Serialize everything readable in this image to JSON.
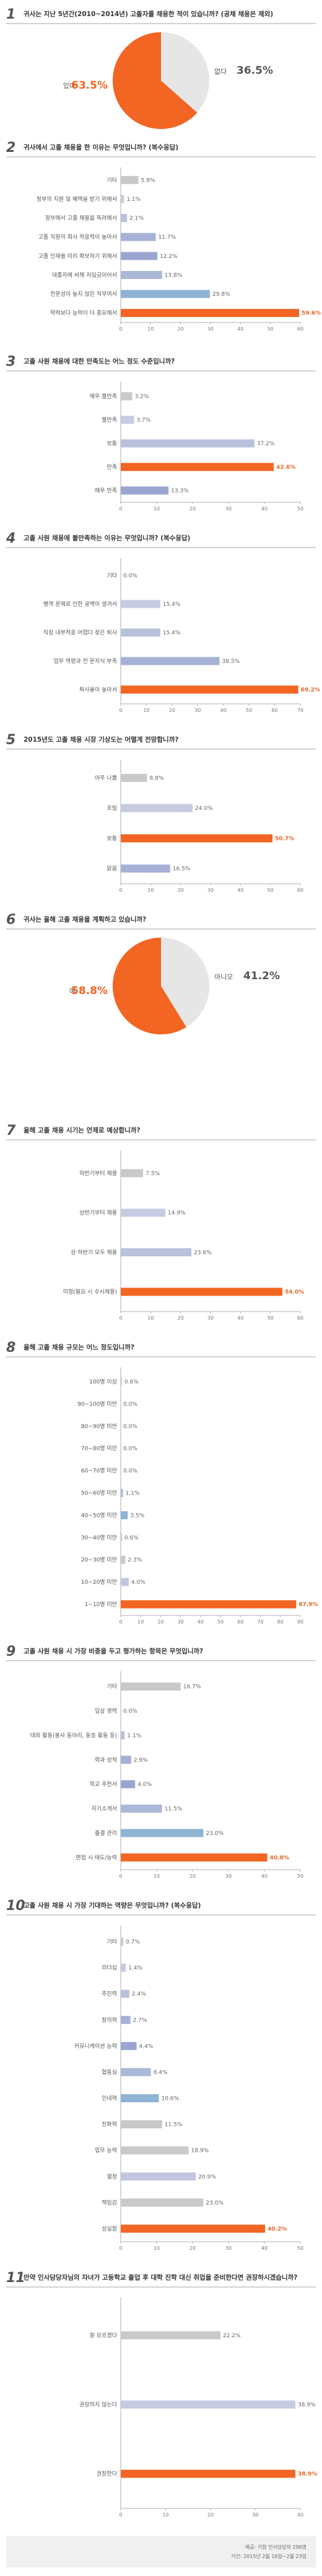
{
  "colors": {
    "orange": "#f26522",
    "bar_fills": [
      "#c9c9c9",
      "#c5cbe0",
      "#b9c2dc",
      "#a7b1d6",
      "#9aa6d0",
      "#aab9d8",
      "#8fb3d4",
      "#c7c7c7",
      "#cacaca",
      "#bfc6dd"
    ],
    "pie_gray": "#e6e6e6",
    "rule": "#888888"
  },
  "chart_data": [
    {
      "type": "pie",
      "qnum": "1",
      "title": "귀사는 지난 5년간(2010~2014년) 고졸자를 채용한 적이 있습니까? (공채 채용은 제외)",
      "slices": [
        {
          "label": "있다",
          "value": 63.5,
          "pct_text": "63.5%",
          "highlight": true
        },
        {
          "label": "없다",
          "value": 36.5,
          "pct_text": "36.5%",
          "highlight": false
        }
      ]
    },
    {
      "type": "bar",
      "qnum": "2",
      "title": "귀사에서 고졸 채용을 한 이유는 무엇입니까? (복수응답)",
      "categories": [
        "기타",
        "정부의 지원 및 혜택을 받기 위해서",
        "정부에서 고졸 채용을 독려해서",
        "고졸 직원의 회사 적응력이 높아서",
        "고졸 인재를 미리 확보하기 위해서",
        "대졸자에 비해 저임금이어서",
        "전문성이 높지 않은 직무여서",
        "학력보다 능력이 더 중요해서"
      ],
      "values": [
        5.9,
        1.1,
        2.1,
        11.7,
        12.2,
        13.8,
        29.8,
        59.6
      ],
      "value_labels": [
        "5.9%",
        "1.1%",
        "2.1%",
        "11.7%",
        "12.2%",
        "13.8%",
        "29.8%",
        "59.6%"
      ],
      "xlim": [
        0,
        60
      ],
      "ticks": [
        "0",
        "10",
        "20",
        "30",
        "40",
        "50",
        "60"
      ]
    },
    {
      "type": "bar",
      "qnum": "3",
      "title": "고졸 사원 채용에 대한 만족도는 어느 정도 수준입니까?",
      "categories": [
        "매우 불만족",
        "불만족",
        "보통",
        "만족",
        "매우 만족"
      ],
      "values": [
        3.2,
        3.7,
        37.2,
        42.6,
        13.3
      ],
      "value_labels": [
        "3.2%",
        "3.7%",
        "37.2%",
        "42.6%",
        "13.3%"
      ],
      "xlim": [
        0,
        50
      ],
      "ticks": [
        "0",
        "10",
        "20",
        "30",
        "40",
        "50"
      ]
    },
    {
      "type": "bar",
      "qnum": "4",
      "title": "고졸 사원 채용에 불만족하는 이유는 무엇입니까? (복수응답)",
      "categories": [
        "기타",
        "병역 문제로 인한 공백이 생겨서",
        "직장 내부적응 어렵다 잦은 퇴사",
        "업무 역량과 전 문지식 부족",
        "퇴사율이 높아서"
      ],
      "values": [
        0.0,
        15.4,
        15.4,
        38.5,
        69.2
      ],
      "value_labels": [
        "0.0%",
        "15.4%",
        "15.4%",
        "38.5%",
        "69.2%"
      ],
      "xlim": [
        0,
        70
      ],
      "ticks": [
        "0",
        "10",
        "20",
        "30",
        "40",
        "50",
        "60",
        "70"
      ]
    },
    {
      "type": "bar",
      "qnum": "5",
      "title": "2015년도 고졸 채용 시장 기상도는 어떨게 전망합니까?",
      "categories": [
        "아주 나쁨",
        "흐림",
        "보통",
        "맑음"
      ],
      "values": [
        8.8,
        24.0,
        50.7,
        16.5
      ],
      "value_labels": [
        "8.8%",
        "24.0%",
        "50.7%",
        "16.5%"
      ],
      "xlim": [
        0,
        60
      ],
      "ticks": [
        "0",
        "10",
        "20",
        "30",
        "40",
        "50",
        "60"
      ]
    },
    {
      "type": "pie",
      "qnum": "6",
      "title": "귀사는 올해 고졸 채용을 계획하고 있습니까?",
      "slices": [
        {
          "label": "예",
          "value": 58.8,
          "pct_text": "58.8%",
          "highlight": true
        },
        {
          "label": "아니오",
          "value": 41.2,
          "pct_text": "41.2%",
          "highlight": false
        }
      ]
    },
    {
      "type": "bar",
      "qnum": "7",
      "title": "올해 고졸 채용 시기는 언제로 예상합니까?",
      "categories": [
        "하반기부터 채용",
        "상반기부터 채용",
        "상·하반기 모두 채용",
        "미정(필요 시 수시채용)"
      ],
      "values": [
        7.5,
        14.9,
        23.6,
        54.0
      ],
      "value_labels": [
        "7.5%",
        "14.9%",
        "23.6%",
        "54.0%"
      ],
      "xlim": [
        0,
        60
      ],
      "ticks": [
        "0",
        "10",
        "20",
        "30",
        "40",
        "50",
        "60"
      ]
    },
    {
      "type": "bar",
      "qnum": "8",
      "title": "올해 고졸 채용 규모는 어느 정도입니까?",
      "categories": [
        "100명 이상",
        "90~100명 미만",
        "80~90명 미만",
        "70~80명 미만",
        "60~70명 미만",
        "50~60명 미만",
        "40~50명 미만",
        "30~40명 미만",
        "20~30명 미만",
        "10~20명 미만",
        "1~10명 미만"
      ],
      "values": [
        0.6,
        0.0,
        0.0,
        0.0,
        0.0,
        1.1,
        3.5,
        0.6,
        2.3,
        4.0,
        87.9
      ],
      "value_labels": [
        "0.6%",
        "0.0%",
        "0.0%",
        "0.0%",
        "0.0%",
        "1.1%",
        "3.5%",
        "0.6%",
        "2.3%",
        "4.0%",
        "87.9%"
      ],
      "xlim": [
        0,
        90
      ],
      "ticks": [
        "0",
        "10",
        "20",
        "30",
        "40",
        "50",
        "60",
        "70",
        "80",
        "90"
      ]
    },
    {
      "type": "bar",
      "qnum": "9",
      "title": "고졸 사원 채용 시 가장 비중을 두고 평가하는 항목은 무엇입니까?",
      "categories": [
        "기타",
        "입상 경력",
        "대외 활동(봉사 동아리, 동호 활동 등)",
        "학과 성적",
        "학교 추천서",
        "자기소개서",
        "출결 관리",
        "면접 시 태도/능력"
      ],
      "values": [
        16.7,
        0.0,
        1.1,
        2.9,
        4.0,
        11.5,
        23.0,
        40.8
      ],
      "value_labels": [
        "16.7%",
        "0.0%",
        "1.1%",
        "2.9%",
        "4.0%",
        "11.5%",
        "23.0%",
        "40.8%"
      ],
      "xlim": [
        0,
        50
      ],
      "ticks": [
        "0",
        "10",
        "20",
        "30",
        "40",
        "50"
      ]
    },
    {
      "type": "bar",
      "qnum": "10",
      "title": "고졸 사원 채용 시 가장 기대하는 역량은 무엇입니까? (복수응답)",
      "categories": [
        "기타",
        "리더십",
        "추진력",
        "창의력",
        "커뮤니케이션 능력",
        "협동심",
        "인내력",
        "친화력",
        "업무 능력",
        "열정",
        "책임감",
        "성실함"
      ],
      "values": [
        0.7,
        1.4,
        2.4,
        2.7,
        4.4,
        8.4,
        10.6,
        11.5,
        18.9,
        20.9,
        23.0,
        40.2
      ],
      "value_labels": [
        "0.7%",
        "1.4%",
        "2.4%",
        "2.7%",
        "4.4%",
        "8.4%",
        "10.6%",
        "11.5%",
        "18.9%",
        "20.9%",
        "23.0%",
        "40.2%"
      ],
      "xlim": [
        0,
        50
      ],
      "ticks": [
        "0",
        "10",
        "20",
        "30",
        "40",
        "50"
      ]
    },
    {
      "type": "bar",
      "qnum": "11",
      "title": "만약 인사담당자님의 자녀가 고등학교 졸업 후 대학 진학 대신 취업을 준비한다면 권장하시겠습니까?",
      "categories": [
        "잘 모르겠다",
        "권장하지 않는다",
        "권장한다"
      ],
      "values": [
        22.2,
        38.9,
        38.9
      ],
      "value_labels": [
        "22.2%",
        "38.9%",
        "38.9%"
      ],
      "xlim": [
        0,
        40
      ],
      "ticks": [
        "0",
        "10",
        "20",
        "30",
        "40"
      ]
    }
  ],
  "footer": {
    "line1": "제공: 기업 인사담당자 296명",
    "line2": "기간: 2015년 2월 16일~2월 23일"
  }
}
